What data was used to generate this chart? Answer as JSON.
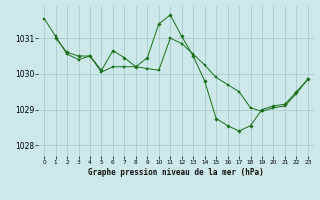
{
  "background_color": "#cce8e8",
  "grid_color": "#aacccc",
  "line_color": "#1a6e1a",
  "marker_color": "#1a6e1a",
  "xlabel": "Graphe pression niveau de la mer (hPa)",
  "ylim": [
    1027.7,
    1031.9
  ],
  "xlim": [
    -0.5,
    23.5
  ],
  "yticks": [
    1028,
    1029,
    1030,
    1031
  ],
  "xticks": [
    0,
    1,
    2,
    3,
    4,
    5,
    6,
    7,
    8,
    9,
    10,
    11,
    12,
    13,
    14,
    15,
    16,
    17,
    18,
    19,
    20,
    21,
    22,
    23
  ],
  "series1_x": [
    0,
    1,
    2,
    3,
    4,
    5,
    6,
    7,
    8,
    9,
    10,
    11,
    12,
    13,
    14,
    15,
    16,
    17,
    18,
    19,
    20,
    21,
    22,
    23
  ],
  "series1_y": [
    1031.55,
    1031.05,
    1030.55,
    1030.4,
    1030.5,
    1030.05,
    1030.2,
    1030.2,
    1030.2,
    1030.15,
    1030.1,
    1031.0,
    1030.85,
    1030.55,
    1030.25,
    1029.9,
    1029.7,
    1029.5,
    1029.05,
    1028.95,
    1029.05,
    1029.1,
    1029.45,
    1029.85
  ],
  "series2_x": [
    1,
    2,
    3,
    4,
    5,
    6,
    7,
    8,
    9,
    10,
    11,
    12,
    13,
    14,
    15,
    16,
    17,
    18,
    19,
    20,
    21,
    22,
    23
  ],
  "series2_y": [
    1031.0,
    1030.6,
    1030.5,
    1030.5,
    1030.1,
    1030.65,
    1030.45,
    1030.2,
    1030.45,
    1031.4,
    1031.65,
    1031.05,
    1030.5,
    1029.8,
    1028.75,
    1028.55,
    1028.4,
    1028.55,
    1029.0,
    1029.1,
    1029.15,
    1029.5,
    1029.85
  ]
}
